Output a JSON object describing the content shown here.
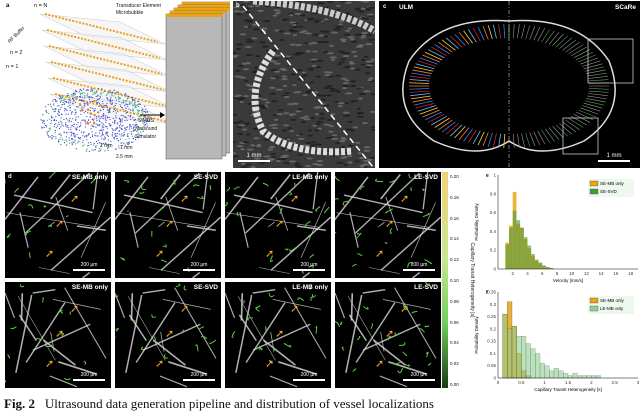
{
  "panel_a": {
    "label": "a",
    "n_labels": [
      "n = N",
      "n = 2",
      "n = 1"
    ],
    "buffer_label": "RF Buffer",
    "legend": [
      "Transducer Element",
      "Microbubble"
    ],
    "simulator": [
      "SIMUS",
      "Ultrasound",
      "Simulator"
    ],
    "dims": [
      "2 mm",
      "1 mm",
      "2.5 mm"
    ]
  },
  "panel_b": {
    "label": "b",
    "scalebar": "1 mm"
  },
  "panel_c": {
    "label": "c",
    "left_title": "ULM",
    "right_title": "SCaRe",
    "scalebar": "1 mm"
  },
  "panel_d": {
    "label": "d",
    "columns": [
      "SE-MB only",
      "SE-SVD",
      "LE-MB only",
      "LE-SVD"
    ],
    "scalebar": "200 µm",
    "colorbar": {
      "label": "Capillary Transit Heterogeneity [s]",
      "ticks": [
        "0.20",
        "0.18",
        "0.16",
        "0.14",
        "0.12",
        "0.10",
        "0.08",
        "0.06",
        "0.04",
        "0.02",
        "0.00"
      ]
    }
  },
  "colors": {
    "mb_only": "#e8a317",
    "svd": "#5cb85c",
    "accent": "#f5a623"
  },
  "caption": {
    "fig": "Fig. 2",
    "text": "Ultrasound data generation pipeline and distribution of vessel localizations"
  },
  "chart_data": [
    {
      "panel": "e",
      "type": "bar",
      "xlabel": "Velocity [mm/s]",
      "ylabel": "Probability Density",
      "xlim": [
        0,
        19
      ],
      "ylim": [
        0,
        1
      ],
      "xticks": [
        "2",
        "4",
        "6",
        "8",
        "10",
        "12",
        "14",
        "16",
        "18"
      ],
      "yticks": [
        "0",
        "0.2",
        "0.4",
        "0.6",
        "0.8",
        "1"
      ],
      "legend_placement": "top-right",
      "bin_width": 0.5,
      "bin_start": 1,
      "series": [
        {
          "name": "SE-MB only",
          "color": "#e8a317",
          "values": [
            0.28,
            0.46,
            0.82,
            0.48,
            0.44,
            0.32,
            0.22,
            0.14,
            0.09,
            0.06,
            0.03,
            0.02,
            0.01
          ]
        },
        {
          "name": "SE-SVD",
          "color": "#4a9a3a",
          "values": [
            0.26,
            0.44,
            0.62,
            0.52,
            0.44,
            0.34,
            0.25,
            0.16,
            0.1,
            0.07,
            0.04,
            0.02,
            0.01
          ]
        }
      ]
    },
    {
      "panel": "f",
      "type": "bar",
      "xlabel": "Capillary Transit Heterogeneity [s]",
      "ylabel": "Probability Density",
      "xlim": [
        0,
        3
      ],
      "ylim": [
        0,
        0.35
      ],
      "xticks": [
        "0",
        "0.5",
        "1",
        "1.5",
        "2",
        "2.5",
        "3"
      ],
      "yticks": [
        "0",
        "0.05",
        "0.1",
        "0.15",
        "0.2",
        "0.25",
        "0.3",
        "0.35"
      ],
      "legend_placement": "top-right",
      "bin_width": 0.1,
      "bin_start": 0.1,
      "series": [
        {
          "name": "SE-MB only",
          "color": "#e8a317",
          "values": [
            0.26,
            0.31,
            0.21,
            0.1,
            0.03,
            0.01
          ]
        },
        {
          "name": "LE-MB only",
          "color": "#8fd18f",
          "values": [
            0.26,
            0.2,
            0.21,
            0.17,
            0.17,
            0.14,
            0.12,
            0.1,
            0.06,
            0.05,
            0.03,
            0.04,
            0.03,
            0.02,
            0.01,
            0.02,
            0.01,
            0.01,
            0.01,
            0.01,
            0.01
          ]
        }
      ]
    }
  ]
}
